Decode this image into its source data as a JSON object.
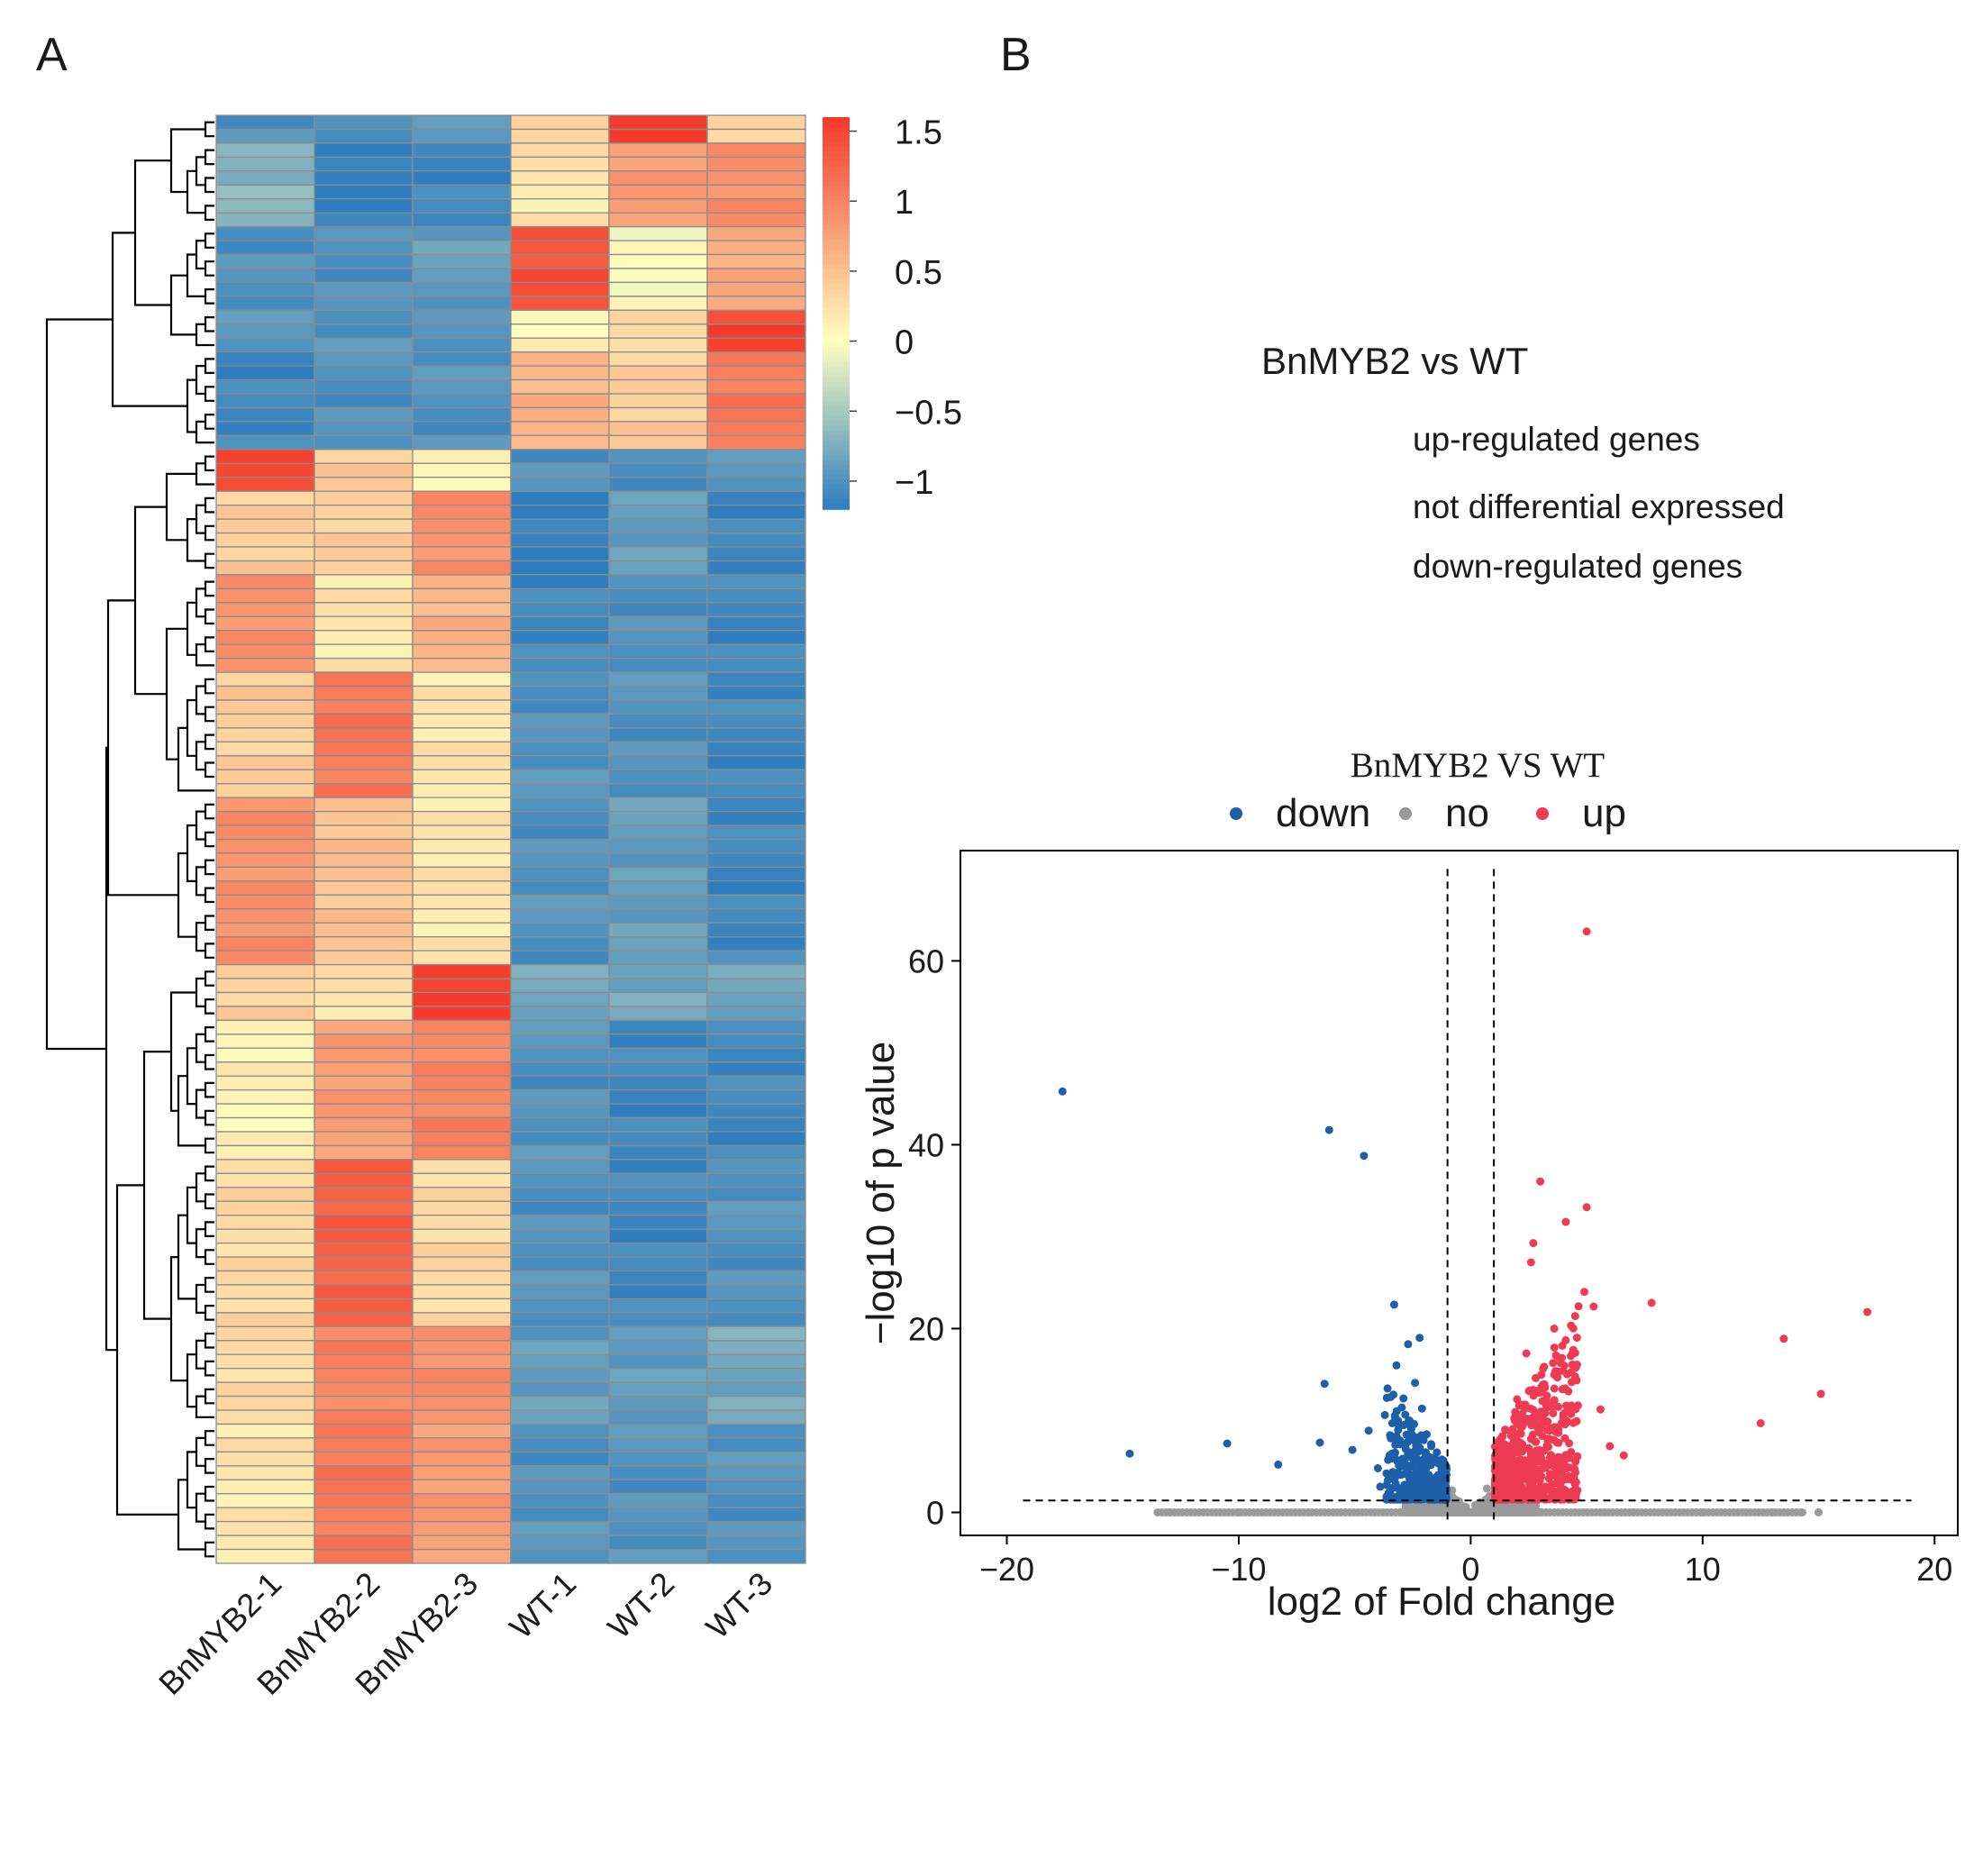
{
  "panel_a_label": "A",
  "panel_b_label": "B",
  "colors": {
    "heat_low": "#2E7DBF",
    "heat_mid": "#FFFFBF",
    "heat_high": "#F43A2A",
    "cell_border": "#8C8C8C",
    "down": "#1D5FA8",
    "no": "#9A9A9A",
    "up": "#EE3B54"
  },
  "legend_text": {
    "comparison_title": "BnMYB2 vs WT",
    "up": "up-regulated genes",
    "no": "not differential expressed",
    "down": "down-regulated genes"
  },
  "chart_data": [
    {
      "type": "heatmap",
      "title": "",
      "columns": [
        "BnMYB2-1",
        "BnMYB2-2",
        "BnMYB2-3",
        "WT-1",
        "WT-2",
        "WT-3"
      ],
      "row_count": 104,
      "value_range": [
        -1.2,
        1.6
      ],
      "colorbar_ticks": [
        {
          "value": 1.5,
          "label": "1.5"
        },
        {
          "value": 1,
          "label": "1"
        },
        {
          "value": 0.5,
          "label": "0.5"
        },
        {
          "value": 0,
          "label": "0"
        },
        {
          "value": -0.5,
          "label": "−0.5"
        },
        {
          "value": -1,
          "label": "−1"
        }
      ],
      "row_groups": [
        {
          "rows": 2,
          "values": [
            -1.0,
            -1.0,
            -1.0,
            0.4,
            1.6,
            0.4
          ]
        },
        {
          "rows": 6,
          "values": [
            -0.7,
            -1.2,
            -1.1,
            0.2,
            0.8,
            0.9
          ]
        },
        {
          "rows": 6,
          "values": [
            -1.0,
            -1.0,
            -0.9,
            1.4,
            0.0,
            0.7
          ]
        },
        {
          "rows": 3,
          "values": [
            -1.0,
            -1.0,
            -1.0,
            0.1,
            0.3,
            1.5
          ]
        },
        {
          "rows": 7,
          "values": [
            -1.1,
            -1.0,
            -1.0,
            0.6,
            0.4,
            1.1
          ]
        },
        {
          "rows": 3,
          "values": [
            1.5,
            0.4,
            0.1,
            -1.0,
            -1.0,
            -1.0
          ]
        },
        {
          "rows": 6,
          "values": [
            0.4,
            0.4,
            0.9,
            -1.2,
            -0.9,
            -1.1
          ]
        },
        {
          "rows": 7,
          "values": [
            0.9,
            0.2,
            0.6,
            -1.1,
            -1.0,
            -1.1
          ]
        },
        {
          "rows": 9,
          "values": [
            0.4,
            1.1,
            0.2,
            -1.0,
            -1.0,
            -1.1
          ]
        },
        {
          "rows": 12,
          "values": [
            0.9,
            0.5,
            0.2,
            -1.0,
            -0.9,
            -1.1
          ]
        },
        {
          "rows": 4,
          "values": [
            0.4,
            0.2,
            1.6,
            -0.8,
            -0.8,
            -0.8
          ]
        },
        {
          "rows": 10,
          "values": [
            0.1,
            0.8,
            1.0,
            -1.0,
            -1.1,
            -1.1
          ]
        },
        {
          "rows": 12,
          "values": [
            0.3,
            1.3,
            0.3,
            -1.0,
            -1.1,
            -1.0
          ]
        },
        {
          "rows": 7,
          "values": [
            0.3,
            1.0,
            0.9,
            -0.9,
            -0.9,
            -0.8
          ]
        },
        {
          "rows": 10,
          "values": [
            0.2,
            1.1,
            0.8,
            -1.0,
            -1.0,
            -1.0
          ]
        }
      ]
    },
    {
      "type": "scatter",
      "title": "BnMYB2  VS  WT",
      "xlabel": "log2 of Fold change",
      "ylabel": "−log10 of p value",
      "xlim": [
        -22,
        21
      ],
      "ylim": [
        -2.5,
        72
      ],
      "xticks": [
        {
          "value": -20,
          "label": "−20"
        },
        {
          "value": -10,
          "label": "−10"
        },
        {
          "value": 0,
          "label": "0"
        },
        {
          "value": 10,
          "label": "10"
        },
        {
          "value": 20,
          "label": "20"
        }
      ],
      "yticks": [
        {
          "value": 0,
          "label": "0"
        },
        {
          "value": 20,
          "label": "20"
        },
        {
          "value": 40,
          "label": "40"
        },
        {
          "value": 60,
          "label": "60"
        }
      ],
      "fold_change_cutoffs": [
        -1,
        1
      ],
      "pvalue_cutoff": 1.3,
      "legend": [
        {
          "key": "down",
          "label": "down"
        },
        {
          "key": "no",
          "label": "no"
        },
        {
          "key": "up",
          "label": "up"
        }
      ],
      "series": [
        {
          "name": "down",
          "color": "#1D5FA8",
          "points": [
            [
              -17.6,
              45.8
            ],
            [
              -14.7,
              6.4
            ],
            [
              -10.5,
              7.5
            ],
            [
              -8.3,
              5.2
            ],
            [
              -6.1,
              41.6
            ],
            [
              -4.6,
              38.8
            ],
            [
              -6.5,
              7.6
            ],
            [
              -6.3,
              14.0
            ],
            [
              -3.3,
              22.6
            ],
            [
              -3.2,
              16.0
            ],
            [
              -2.7,
              18.3
            ],
            [
              -2.2,
              19.0
            ],
            [
              -5.1,
              6.8
            ],
            [
              -4.4,
              8.9
            ],
            [
              -4.0,
              4.8
            ],
            [
              -3.7,
              10.6
            ],
            [
              -3.5,
              6.2
            ],
            [
              -2.9,
              12.4
            ],
            [
              -2.6,
              9.8
            ],
            [
              -2.4,
              14.1
            ],
            [
              -2.1,
              11.3
            ],
            [
              -1.9,
              8.5
            ],
            [
              -1.7,
              7.2
            ],
            [
              -1.5,
              5.6
            ],
            [
              -1.4,
              3.9
            ],
            [
              -1.3,
              2.6
            ],
            [
              -1.2,
              1.9
            ],
            [
              -3.9,
              2.8
            ],
            [
              -3.0,
              4.1
            ],
            [
              -2.8,
              6.9
            ]
          ]
        },
        {
          "name": "no",
          "color": "#9A9A9A",
          "points": [
            [
              -13.0,
              0.0
            ],
            [
              -10.0,
              0.0
            ],
            [
              -7.0,
              0.0
            ],
            [
              -3.0,
              0.0
            ],
            [
              0.0,
              0.0
            ],
            [
              3.0,
              0.0
            ],
            [
              7.0,
              0.0
            ],
            [
              10.0,
              0.0
            ],
            [
              13.0,
              0.0
            ],
            [
              14.3,
              0.0
            ],
            [
              15.0,
              0.0
            ],
            [
              -0.5,
              1.2
            ],
            [
              0.4,
              1.1
            ],
            [
              -0.8,
              2.4
            ],
            [
              0.7,
              2.6
            ],
            [
              -0.2,
              0.6
            ],
            [
              0.2,
              0.8
            ],
            [
              -1.5,
              0.9
            ],
            [
              1.4,
              1.0
            ],
            [
              -2.5,
              0.4
            ],
            [
              2.4,
              0.5
            ]
          ]
        },
        {
          "name": "up",
          "color": "#EE3B54",
          "points": [
            [
              5.0,
              63.2
            ],
            [
              3.0,
              36.0
            ],
            [
              5.0,
              33.2
            ],
            [
              4.1,
              31.6
            ],
            [
              2.7,
              29.3
            ],
            [
              2.6,
              27.2
            ],
            [
              7.8,
              22.8
            ],
            [
              17.1,
              21.8
            ],
            [
              13.5,
              18.9
            ],
            [
              15.1,
              12.9
            ],
            [
              12.5,
              9.7
            ],
            [
              6.6,
              6.2
            ],
            [
              5.3,
              22.4
            ],
            [
              4.9,
              24.0
            ],
            [
              3.6,
              20.0
            ],
            [
              2.4,
              17.3
            ],
            [
              4.5,
              14.8
            ],
            [
              3.2,
              13.6
            ],
            [
              2.0,
              12.3
            ],
            [
              5.6,
              11.2
            ],
            [
              4.0,
              10.3
            ],
            [
              3.4,
              8.9
            ],
            [
              2.6,
              8.0
            ],
            [
              1.8,
              7.4
            ],
            [
              6.0,
              7.2
            ],
            [
              4.6,
              6.1
            ],
            [
              1.5,
              5.8
            ],
            [
              2.2,
              4.9
            ],
            [
              3.8,
              4.3
            ],
            [
              1.3,
              3.1
            ],
            [
              1.2,
              2.2
            ],
            [
              2.9,
              1.9
            ]
          ]
        }
      ]
    }
  ]
}
